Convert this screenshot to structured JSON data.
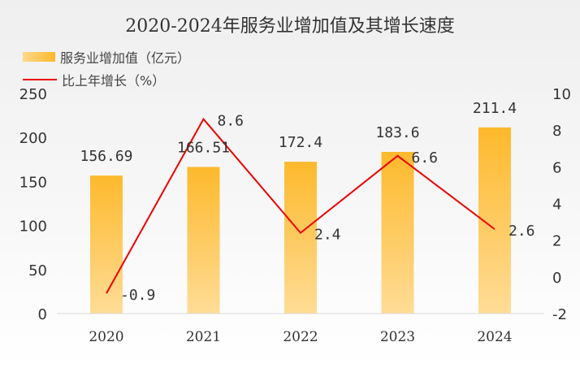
{
  "chart_data": {
    "type": "bar+line",
    "title": "2020-2024年服务业增加值及其增长速度",
    "categories": [
      "2020",
      "2021",
      "2022",
      "2023",
      "2024"
    ],
    "series": [
      {
        "name": "服务业增加值（亿元）",
        "type": "bar",
        "axis": "left",
        "values": [
          156.69,
          166.51,
          172.4,
          183.6,
          211.4
        ],
        "labels": [
          "156.69",
          "166.51",
          "172.4",
          "183.6",
          "211.4"
        ],
        "color": "#fdb92c"
      },
      {
        "name": "比上年增长（%）",
        "type": "line",
        "axis": "right",
        "values": [
          -0.9,
          8.6,
          2.4,
          6.6,
          2.6
        ],
        "labels": [
          "-0.9",
          "8.6",
          "2.4",
          "6.6",
          "2.6"
        ],
        "color": "#ee0000"
      }
    ],
    "left_axis": {
      "ylim": [
        0,
        250
      ],
      "ticks": [
        "0",
        "50",
        "100",
        "150",
        "200",
        "250"
      ]
    },
    "right_axis": {
      "ylim": [
        -2,
        10
      ],
      "ticks": [
        "-2",
        "0",
        "2",
        "4",
        "6",
        "8",
        "10"
      ]
    },
    "legend": "top-left",
    "grid": false
  }
}
